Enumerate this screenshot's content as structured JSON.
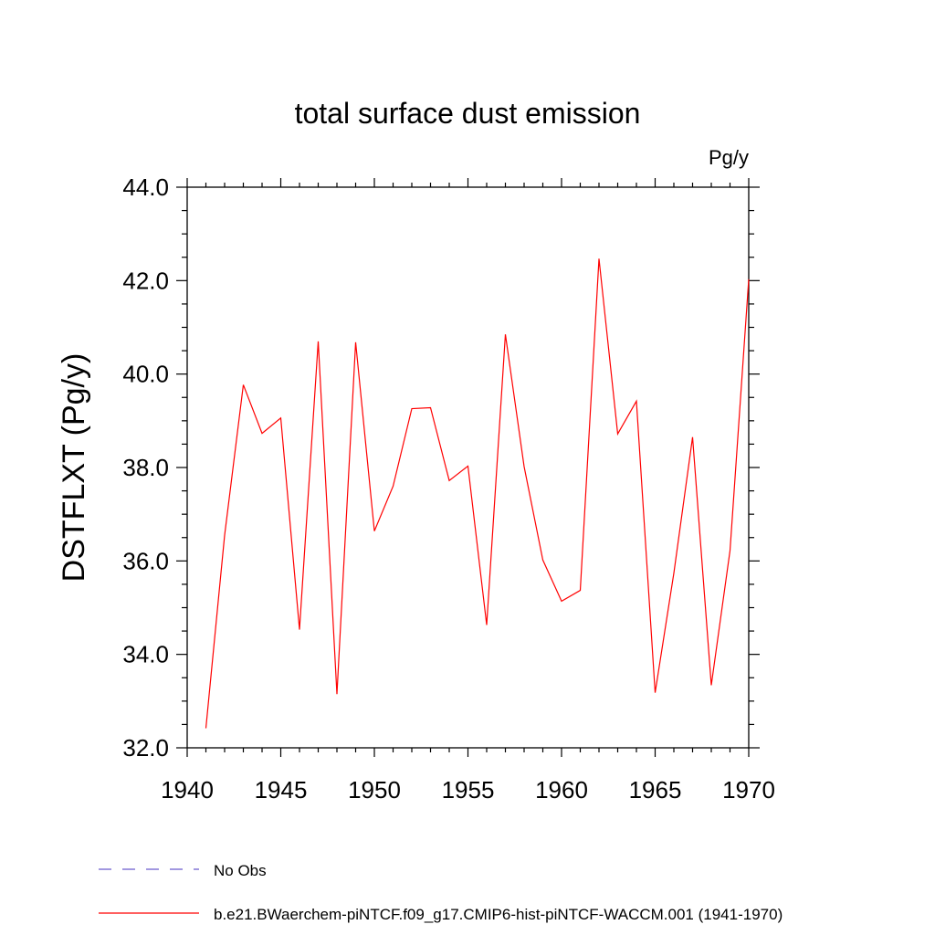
{
  "chart_data": {
    "type": "line",
    "title": "total surface dust emission",
    "units_label": "Pg/y",
    "ylabel": "DSTFLXT  (Pg/y)",
    "xlabel": "",
    "xlim": [
      1940,
      1970
    ],
    "ylim": [
      32.0,
      44.0
    ],
    "xticks": [
      1940,
      1945,
      1950,
      1955,
      1960,
      1965,
      1970
    ],
    "yticks": [
      "32.0",
      "34.0",
      "36.0",
      "38.0",
      "40.0",
      "42.0",
      "44.0"
    ],
    "grid": false,
    "legend_position": "bottom-left",
    "legend": [
      {
        "label": "No Obs",
        "color": "#6a5acd",
        "dash": true
      },
      {
        "label": "b.e21.BWaerchem-piNTCF.f09_g17.CMIP6-hist-piNTCF-WACCM.001 (1941-1970)",
        "color": "#ff0000",
        "dash": false
      }
    ],
    "series": [
      {
        "name": "b.e21.BWaerchem-piNTCF.f09_g17.CMIP6-hist-piNTCF-WACCM.001 (1941-1970)",
        "color": "#ff0000",
        "x": [
          1941,
          1942,
          1943,
          1944,
          1945,
          1946,
          1947,
          1948,
          1949,
          1950,
          1951,
          1952,
          1953,
          1954,
          1955,
          1956,
          1957,
          1958,
          1959,
          1960,
          1961,
          1962,
          1963,
          1964,
          1965,
          1966,
          1967,
          1968,
          1969,
          1970
        ],
        "y": [
          32.42,
          36.55,
          39.77,
          38.73,
          39.06,
          34.53,
          40.7,
          33.15,
          40.68,
          36.64,
          37.6,
          39.26,
          39.28,
          37.72,
          38.03,
          34.63,
          40.85,
          38.02,
          36.02,
          35.14,
          35.37,
          42.47,
          38.72,
          39.42,
          33.18,
          35.74,
          38.65,
          33.34,
          36.22,
          42.03
        ]
      }
    ]
  }
}
